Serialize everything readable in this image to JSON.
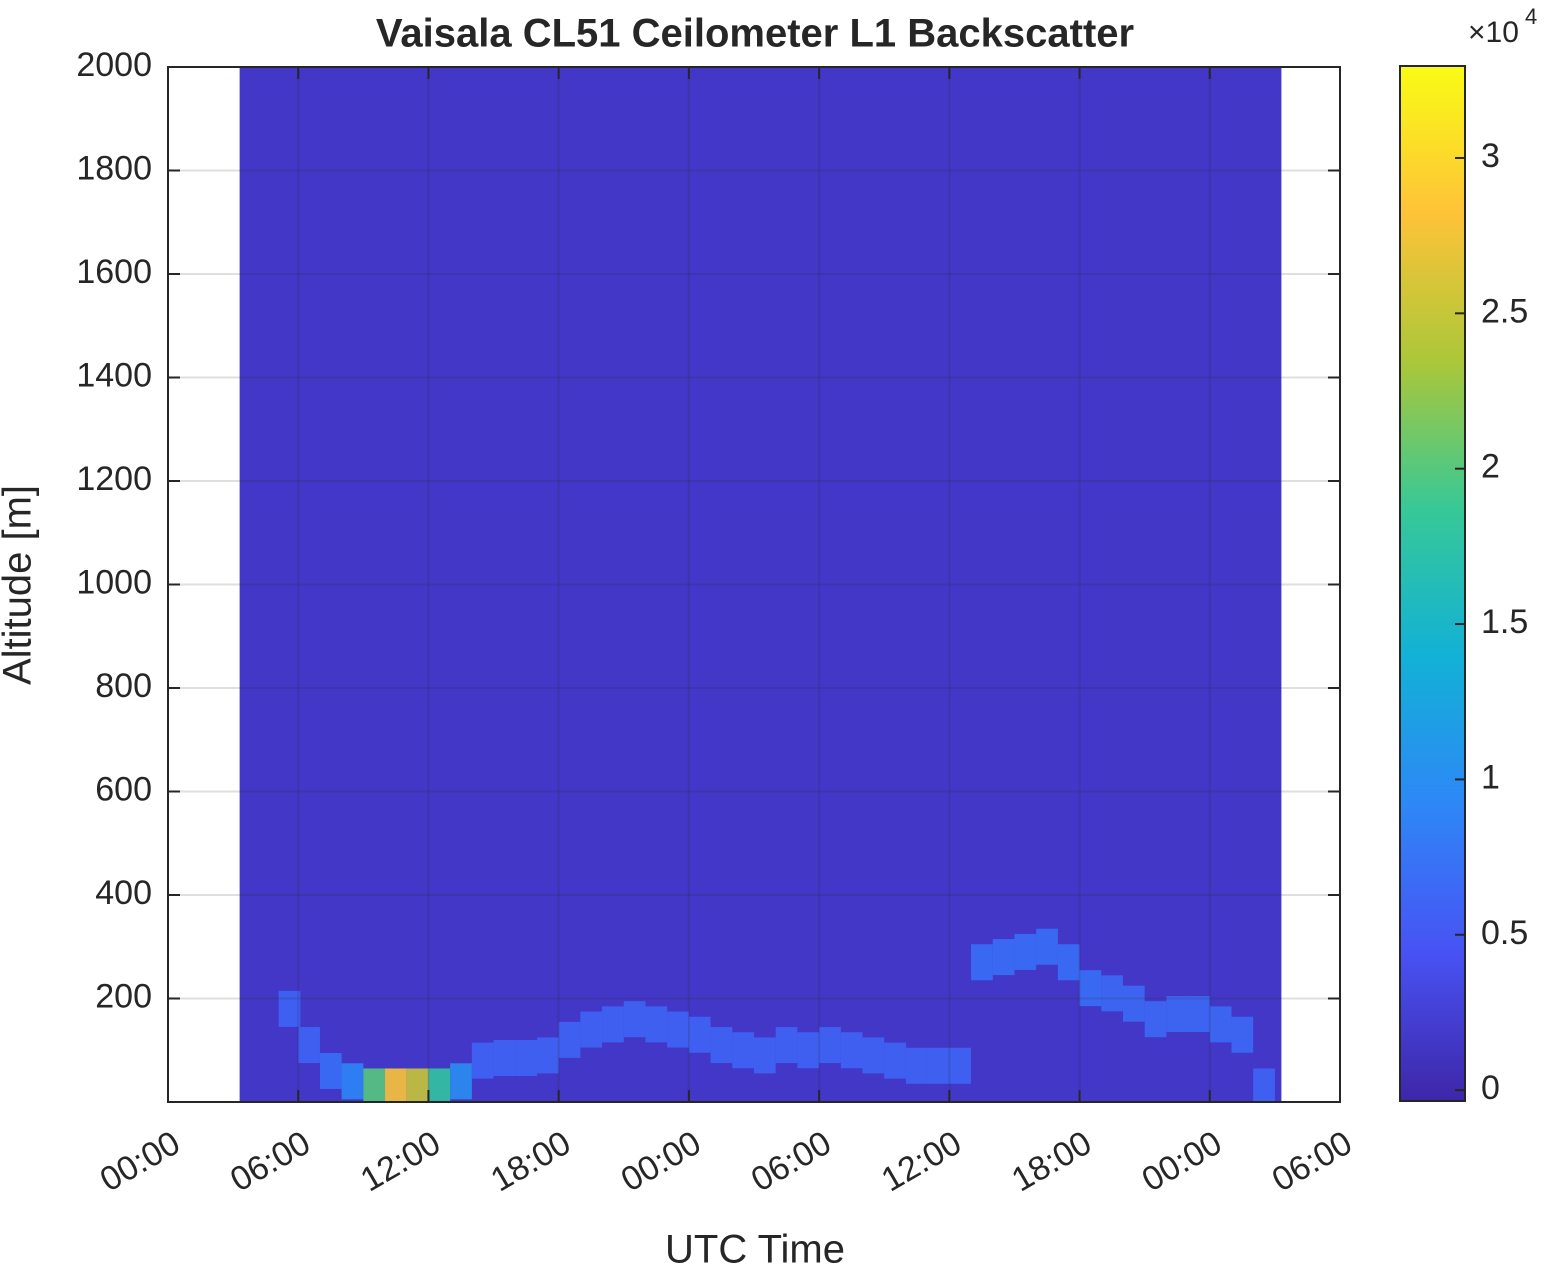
{
  "chart_data": {
    "type": "heatmap",
    "title": "Vaisala CL51 Ceilometer L1 Backscatter",
    "x_label": "UTC Time",
    "y_label": "Altitude [m]",
    "colormap": "parula",
    "grid": true,
    "xlim": [
      0,
      54
    ],
    "xticks": [
      {
        "value": 0,
        "label": "00:00"
      },
      {
        "value": 6,
        "label": "06:00"
      },
      {
        "value": 12,
        "label": "12:00"
      },
      {
        "value": 18,
        "label": "18:00"
      },
      {
        "value": 24,
        "label": "00:00"
      },
      {
        "value": 30,
        "label": "06:00"
      },
      {
        "value": 36,
        "label": "12:00"
      },
      {
        "value": 42,
        "label": "18:00"
      },
      {
        "value": 48,
        "label": "00:00"
      },
      {
        "value": 54,
        "label": "06:00"
      }
    ],
    "ylim": [
      0,
      2000
    ],
    "yticks": [
      200,
      400,
      600,
      800,
      1000,
      1200,
      1400,
      1600,
      1800,
      2000
    ],
    "clim": [
      -350,
      32960
    ],
    "cticks": [
      0,
      {
        "value": 5000,
        "label": "0.5"
      },
      {
        "value": 10000,
        "label": "1"
      },
      {
        "value": 15000,
        "label": "1.5"
      },
      {
        "value": 20000,
        "label": "2"
      },
      {
        "value": 25000,
        "label": "2.5"
      },
      {
        "value": 30000,
        "label": "3"
      }
    ],
    "colorbar_multiplier": "×10",
    "colorbar_exponent": "4",
    "data_xlim": [
      3.3,
      51.3
    ],
    "background_value": 1500,
    "x": [
      5.6,
      6.5,
      7.5,
      8.5,
      9.5,
      10.5,
      11.5,
      12.5,
      13.5,
      14.5,
      15.5,
      16.5,
      17.5,
      18.5,
      19.5,
      20.5,
      21.5,
      22.5,
      23.5,
      24.5,
      25.5,
      26.5,
      27.5,
      28.5,
      29.5,
      30.5,
      31.5,
      32.5,
      33.5,
      34.5,
      35.5,
      36.5,
      37.5,
      38.5,
      39.5,
      40.5,
      41.5,
      42.5,
      43.5,
      44.5,
      45.5,
      46.5,
      47.5,
      48.5,
      49.5,
      50.5
    ],
    "y": [
      180,
      110,
      60,
      40,
      30,
      30,
      30,
      30,
      40,
      80,
      85,
      85,
      90,
      120,
      140,
      150,
      160,
      150,
      140,
      130,
      110,
      100,
      90,
      110,
      100,
      110,
      100,
      90,
      80,
      70,
      70,
      70,
      270,
      280,
      290,
      300,
      270,
      220,
      210,
      190,
      160,
      170,
      170,
      150,
      130,
      30
    ],
    "z": [
      6000,
      6000,
      7000,
      9000,
      20000,
      28000,
      25000,
      18000,
      10000,
      6000,
      6000,
      6000,
      6000,
      6000,
      6000,
      6000,
      6000,
      6000,
      6000,
      6000,
      6000,
      6000,
      6000,
      6000,
      6000,
      6000,
      6000,
      6000,
      6000,
      6000,
      6000,
      6000,
      7000,
      7000,
      7000,
      7000,
      7000,
      7000,
      6500,
      6500,
      6500,
      6500,
      6500,
      6500,
      6500,
      6000
    ]
  }
}
